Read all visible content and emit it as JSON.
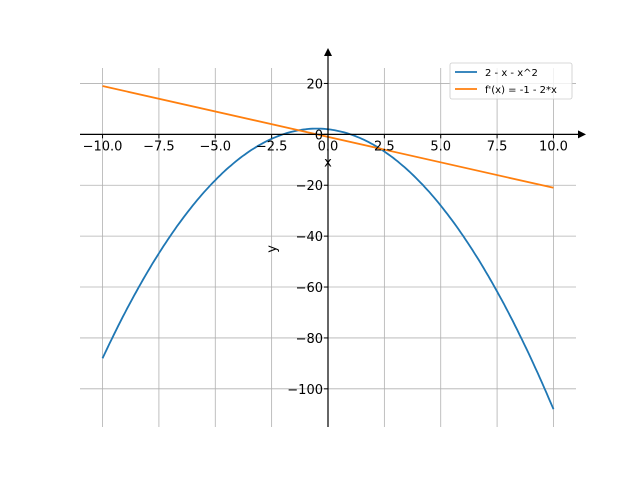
{
  "chart_data": {
    "type": "line",
    "title": "",
    "xlabel": "x",
    "ylabel": "y",
    "xlim": [
      -11,
      11
    ],
    "ylim": [
      -115,
      30
    ],
    "grid": true,
    "legend_position": "top-right",
    "x_ticks": [
      -10.0,
      -7.5,
      -5.0,
      -2.5,
      0.0,
      2.5,
      5.0,
      7.5,
      10.0
    ],
    "x_tick_labels": [
      "−10.0",
      "−7.5",
      "−5.0",
      "−2.5",
      "0.0",
      "2.5",
      "5.0",
      "7.5",
      "10.0"
    ],
    "y_ticks": [
      20,
      0,
      -20,
      -40,
      -60,
      -80,
      -100
    ],
    "y_tick_labels": [
      "20",
      "0",
      "−20",
      "−40",
      "−60",
      "−80",
      "−100"
    ],
    "x_range": [
      -10,
      10
    ],
    "series": [
      {
        "name": "2 - x - x^2",
        "color": "#1f77b4",
        "x": [
          -10,
          -9,
          -8,
          -7,
          -6,
          -5,
          -4,
          -3,
          -2,
          -1,
          -0.5,
          0,
          1,
          2,
          3,
          4,
          5,
          6,
          7,
          8,
          9,
          10
        ],
        "y": [
          -88,
          -70,
          -54,
          -40,
          -28,
          -18,
          -10,
          -4,
          0,
          2,
          2.25,
          2,
          0,
          -4,
          -10,
          -18,
          -28,
          -40,
          -54,
          -70,
          -88,
          -108
        ]
      },
      {
        "name": "f'(x) = -1 - 2*x",
        "color": "#ff7f0e",
        "x": [
          -10,
          10
        ],
        "y": [
          19,
          -21
        ]
      }
    ]
  }
}
